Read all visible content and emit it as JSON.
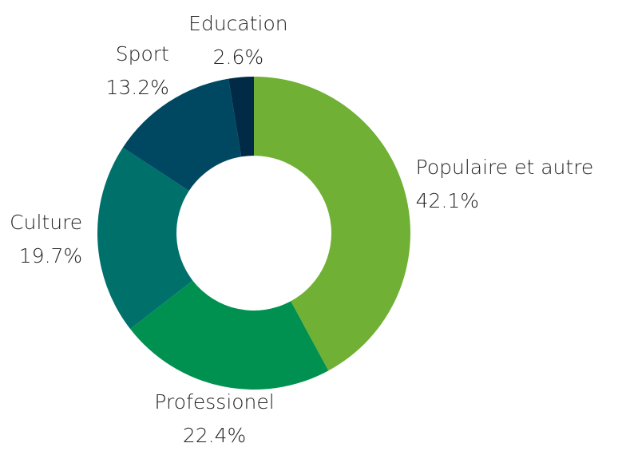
{
  "chart_data": {
    "type": "donut",
    "categories": [
      "Populaire et autre",
      "Professionel",
      "Culture",
      "Sport",
      "Education"
    ],
    "values": [
      42.1,
      22.4,
      19.7,
      13.2,
      2.6
    ],
    "value_labels": [
      "42.1%",
      "22.4%",
      "19.7%",
      "13.2%",
      "2.6%"
    ],
    "colors": [
      "#70b034",
      "#009150",
      "#00706b",
      "#004862",
      "#002a45"
    ]
  }
}
